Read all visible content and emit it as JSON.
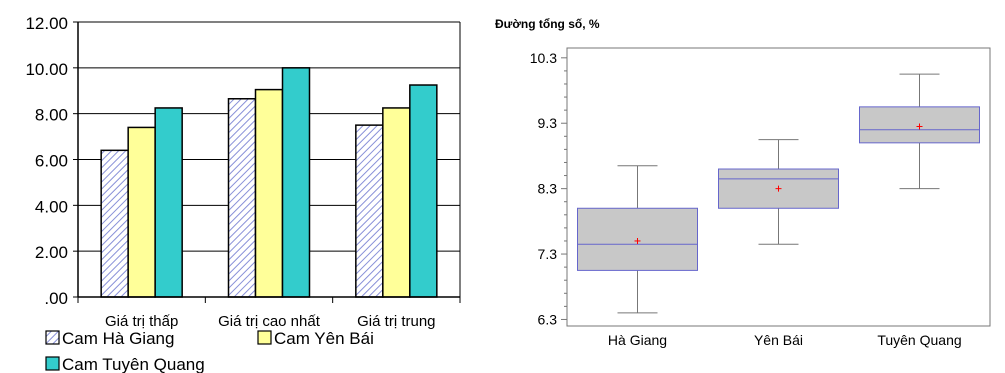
{
  "chart_data": [
    {
      "type": "bar",
      "title": "",
      "xlabel": "",
      "ylabel": "",
      "categories": [
        "Giá trị thấp",
        "Giá trị cao nhất",
        "Giá trị trung"
      ],
      "series": [
        {
          "name": "Cam Hà Giang",
          "values": [
            6.4,
            8.65,
            7.5
          ],
          "color": "#dfe3f8",
          "pattern": "diagonal-hatch"
        },
        {
          "name": "Cam Yên Bái",
          "values": [
            7.4,
            9.05,
            8.25
          ],
          "color": "#ffff99"
        },
        {
          "name": "Cam Tuyên Quang",
          "values": [
            8.25,
            10.0,
            9.25
          ],
          "color": "#33cccc"
        }
      ],
      "ylim": [
        0,
        12
      ],
      "yticks": [
        0,
        2,
        4,
        6,
        8,
        10,
        12
      ],
      "ytick_labels": [
        ".00",
        "2.00",
        "4.00",
        "6.00",
        "8.00",
        "10.00",
        "12.00"
      ],
      "grid": true,
      "legend_position": "bottom"
    },
    {
      "type": "box",
      "title": "Đường tổng số, %",
      "xlabel": "",
      "ylabel": "",
      "categories": [
        "Hà Giang",
        "Yên Bái",
        "Tuyên Quang"
      ],
      "boxes": [
        {
          "min": 6.4,
          "q1": 7.05,
          "median": 7.45,
          "q3": 8.0,
          "max": 8.65,
          "mean": 7.5
        },
        {
          "min": 7.45,
          "q1": 8.0,
          "median": 8.45,
          "q3": 8.6,
          "max": 9.05,
          "mean": 8.3
        },
        {
          "min": 8.3,
          "q1": 9.0,
          "median": 9.2,
          "q3": 9.55,
          "max": 10.05,
          "mean": 9.25
        }
      ],
      "ylim": [
        6.2,
        10.45
      ],
      "yticks": [
        6.3,
        7.3,
        8.3,
        9.3,
        10.3
      ],
      "ytick_labels": [
        "6.3",
        "7.3",
        "8.3",
        "9.3",
        "10.3"
      ],
      "box_color": "#c8c8c8",
      "box_edge_color": "#6666cc",
      "mean_marker_color": "#ff0000"
    }
  ]
}
